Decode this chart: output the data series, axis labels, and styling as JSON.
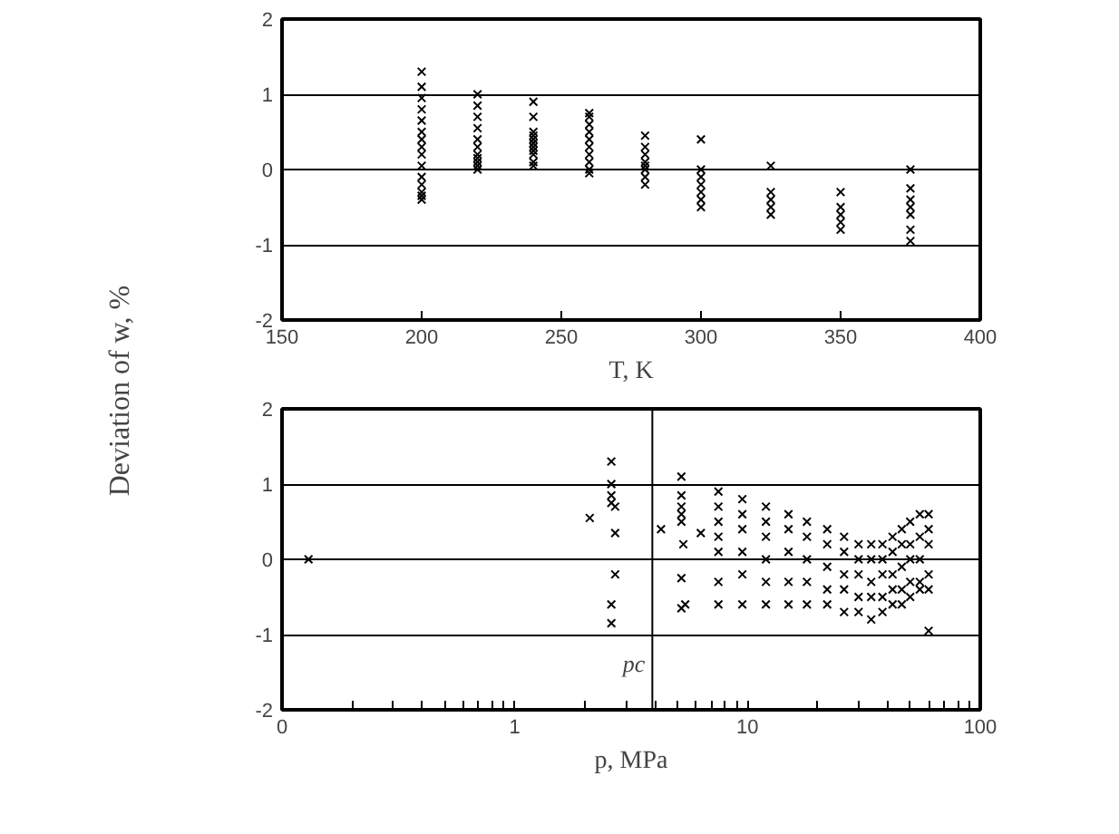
{
  "chart_data": [
    {
      "type": "scatter",
      "xlabel": "T, K",
      "ylabel": "Deviation of w, %",
      "marker": "cross",
      "grid": "y",
      "xlim": [
        150,
        400
      ],
      "xticks": [
        150,
        200,
        250,
        300,
        350,
        400
      ],
      "ylim": [
        -2,
        2
      ],
      "yticks": [
        -2,
        -1,
        0,
        1,
        2
      ],
      "series": [
        {
          "color": "#000000",
          "x": [
            200,
            200,
            200,
            200,
            200,
            200,
            200,
            200,
            200,
            200,
            200,
            200,
            200,
            200,
            200,
            220,
            220,
            220,
            220,
            220,
            220,
            220,
            220,
            220,
            220,
            220,
            240,
            240,
            240,
            240,
            240,
            240,
            240,
            240,
            240,
            240,
            240,
            260,
            260,
            260,
            260,
            260,
            260,
            260,
            260,
            260,
            260,
            280,
            280,
            280,
            280,
            280,
            280,
            280,
            280,
            300,
            300,
            300,
            300,
            300,
            300,
            300,
            325,
            325,
            325,
            325,
            325,
            350,
            350,
            350,
            350,
            350,
            375,
            375,
            375,
            375,
            375,
            375,
            375
          ],
          "values": [
            1.3,
            1.1,
            0.95,
            0.8,
            0.65,
            0.5,
            0.4,
            0.3,
            0.2,
            0.05,
            -0.1,
            -0.2,
            -0.3,
            -0.35,
            -0.4,
            1.0,
            0.85,
            0.7,
            0.55,
            0.4,
            0.3,
            0.2,
            0.15,
            0.1,
            0.05,
            0.0,
            0.9,
            0.7,
            0.5,
            0.45,
            0.4,
            0.35,
            0.3,
            0.25,
            0.2,
            0.1,
            0.05,
            0.75,
            0.7,
            0.6,
            0.5,
            0.4,
            0.3,
            0.2,
            0.1,
            0.0,
            -0.05,
            0.45,
            0.3,
            0.2,
            0.1,
            0.05,
            0.0,
            -0.1,
            -0.2,
            0.4,
            0.0,
            -0.1,
            -0.2,
            -0.3,
            -0.4,
            -0.5,
            0.05,
            -0.3,
            -0.4,
            -0.5,
            -0.6,
            -0.3,
            -0.5,
            -0.6,
            -0.7,
            -0.8,
            0.0,
            -0.25,
            -0.4,
            -0.5,
            -0.6,
            -0.8,
            -0.95
          ]
        }
      ]
    },
    {
      "type": "scatter",
      "xlabel": "p, MPa",
      "marker": "cross",
      "grid": "y",
      "log": "x",
      "xlim": [
        0.1,
        100
      ],
      "xticks": [
        {
          "value": 0.1,
          "label": "0"
        },
        {
          "value": 0.2,
          "label": null
        },
        {
          "value": 0.3,
          "label": null
        },
        {
          "value": 0.4,
          "label": null
        },
        {
          "value": 0.5,
          "label": null
        },
        {
          "value": 0.6,
          "label": null
        },
        {
          "value": 0.7,
          "label": null
        },
        {
          "value": 0.8,
          "label": null
        },
        {
          "value": 0.9,
          "label": null
        },
        1,
        {
          "value": 2,
          "label": null
        },
        {
          "value": 3,
          "label": null
        },
        {
          "value": 4,
          "label": null
        },
        {
          "value": 5,
          "label": null
        },
        {
          "value": 6,
          "label": null
        },
        {
          "value": 7,
          "label": null
        },
        {
          "value": 8,
          "label": null
        },
        {
          "value": 9,
          "label": null
        },
        10,
        {
          "value": 20,
          "label": null
        },
        {
          "value": 30,
          "label": null
        },
        {
          "value": 40,
          "label": null
        },
        {
          "value": 50,
          "label": null
        },
        {
          "value": 60,
          "label": null
        },
        {
          "value": 70,
          "label": null
        },
        {
          "value": 80,
          "label": null
        },
        {
          "value": 90,
          "label": null
        },
        100
      ],
      "ylim": [
        -2,
        2
      ],
      "yticks": [
        -2,
        -1,
        0,
        1,
        2
      ],
      "ref_lines": [
        {
          "axis": "x",
          "value": 3.9,
          "label": "pc"
        }
      ],
      "series": [
        {
          "color": "#000000",
          "x": [
            0.13,
            2.1,
            2.6,
            2.6,
            2.6,
            2.6,
            2.7,
            2.7,
            2.7,
            2.6,
            2.6,
            4.25,
            6.3,
            5.2,
            5.2,
            5.2,
            5.2,
            5.2,
            5.3,
            5.2,
            5.2,
            5.4,
            7.5,
            7.5,
            7.5,
            7.5,
            7.5,
            7.5,
            7.5,
            9.5,
            9.5,
            9.5,
            9.5,
            9.5,
            9.5,
            12,
            12,
            12,
            12,
            12,
            12,
            15,
            15,
            15,
            15,
            15,
            18,
            18,
            18,
            18,
            18,
            22,
            22,
            22,
            22,
            22,
            26,
            26,
            26,
            26,
            26,
            30,
            30,
            30,
            30,
            30,
            34,
            34,
            34,
            34,
            34,
            38,
            38,
            38,
            38,
            38,
            42,
            42,
            42,
            42,
            42,
            46,
            46,
            46,
            46,
            46,
            50,
            50,
            50,
            50,
            50,
            55,
            55,
            55,
            55,
            55,
            60,
            60,
            60,
            60,
            60,
            60
          ],
          "values": [
            0.0,
            0.55,
            1.3,
            1.0,
            0.85,
            0.75,
            0.7,
            0.35,
            -0.2,
            -0.6,
            -0.85,
            0.4,
            0.35,
            1.1,
            0.85,
            0.7,
            0.6,
            0.5,
            0.2,
            -0.25,
            -0.65,
            -0.6,
            0.9,
            0.7,
            0.5,
            0.3,
            0.1,
            -0.3,
            -0.6,
            0.8,
            0.6,
            0.4,
            0.1,
            -0.2,
            -0.6,
            0.7,
            0.5,
            0.3,
            0.0,
            -0.3,
            -0.6,
            0.6,
            0.4,
            0.1,
            -0.3,
            -0.6,
            0.5,
            0.3,
            0.0,
            -0.3,
            -0.6,
            0.4,
            0.2,
            -0.1,
            -0.4,
            -0.6,
            0.3,
            0.1,
            -0.2,
            -0.4,
            -0.7,
            0.2,
            0.0,
            -0.2,
            -0.5,
            -0.7,
            0.2,
            0.0,
            -0.3,
            -0.5,
            -0.8,
            0.2,
            0.0,
            -0.2,
            -0.5,
            -0.7,
            0.3,
            0.1,
            -0.2,
            -0.4,
            -0.6,
            0.4,
            0.2,
            -0.1,
            -0.4,
            -0.6,
            0.5,
            0.2,
            0.0,
            -0.3,
            -0.5,
            0.6,
            0.3,
            0.0,
            -0.3,
            -0.4,
            0.6,
            0.4,
            0.2,
            -0.2,
            -0.4,
            -0.95
          ]
        }
      ]
    }
  ]
}
